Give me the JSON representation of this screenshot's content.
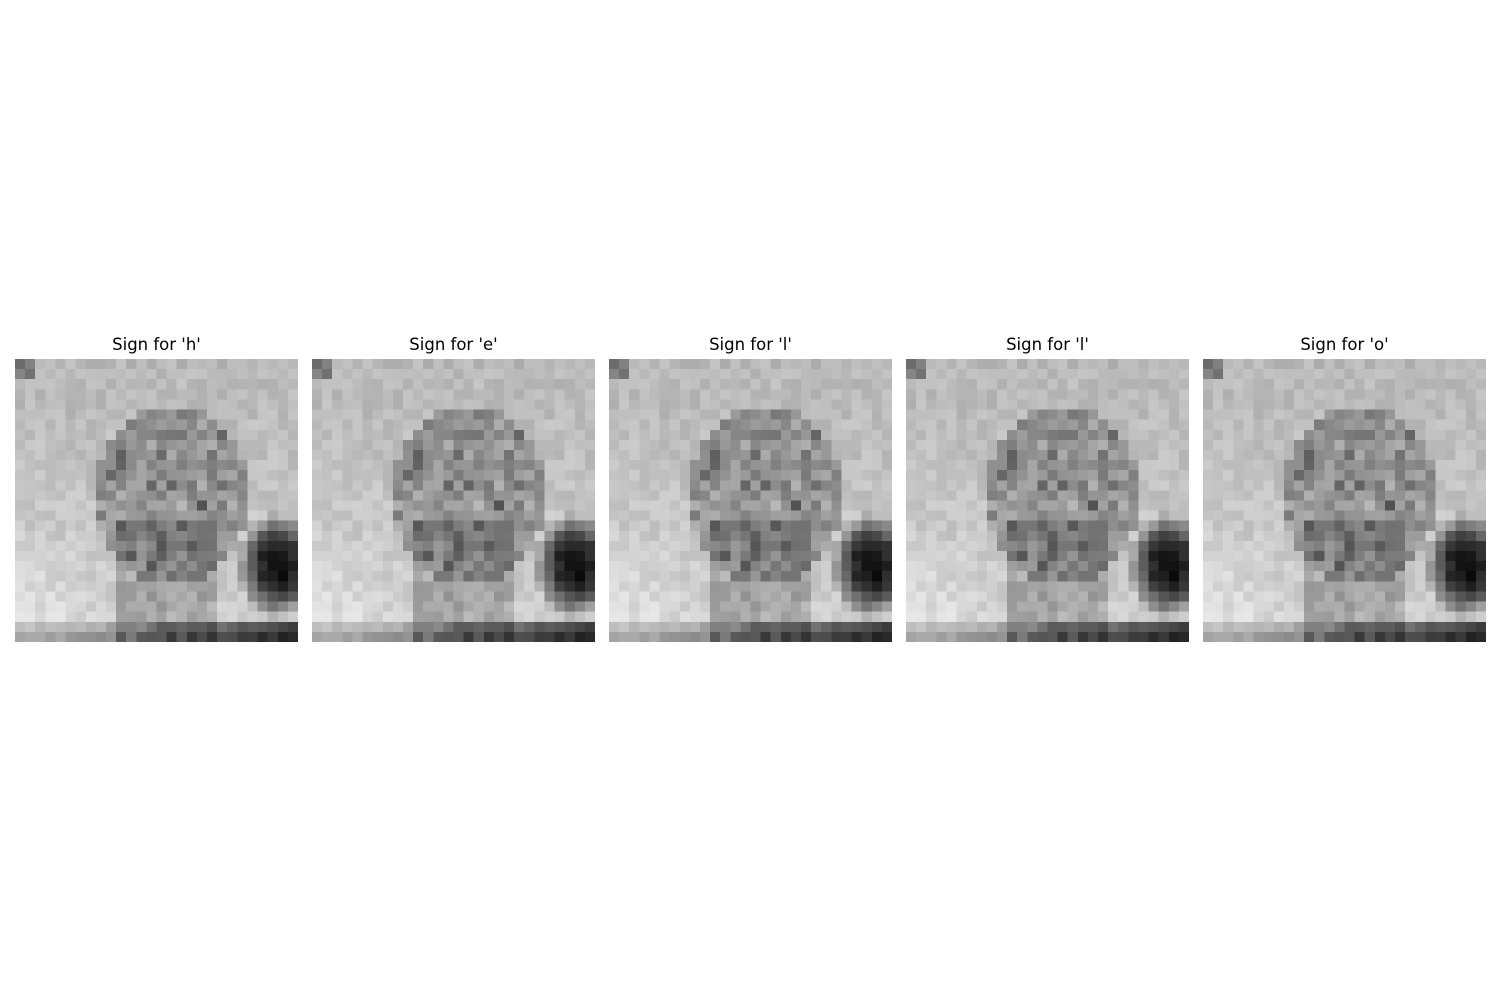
{
  "figure": {
    "panels": [
      {
        "title": "Sign for 'h'",
        "letter": "h"
      },
      {
        "title": "Sign for 'e'",
        "letter": "e"
      },
      {
        "title": "Sign for 'l'",
        "letter": "l"
      },
      {
        "title": "Sign for 'l'",
        "letter": "l"
      },
      {
        "title": "Sign for 'o'",
        "letter": "o"
      }
    ],
    "colormap": "grayscale",
    "grid_size": 28
  }
}
